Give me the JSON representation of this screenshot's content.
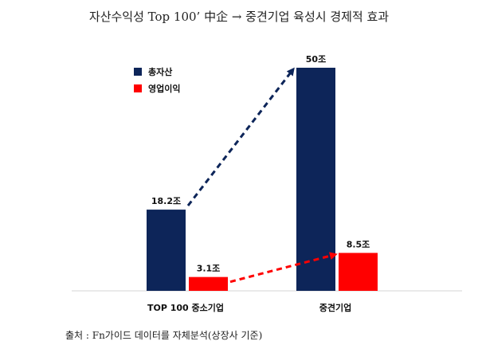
{
  "title": "자산수익성 Top 100’ 中企 → 중견기업 육성시 경제적 효과",
  "source": "출처 : Fn가이드 데이터를 자체분석(상장사 기준)",
  "chart_data": {
    "type": "bar",
    "categories": [
      "TOP 100 중소기업",
      "중견기업"
    ],
    "series": [
      {
        "name": "총자산",
        "values": [
          18.2,
          50
        ],
        "labels": [
          "18.2조",
          "50조"
        ],
        "color": "#0d2559"
      },
      {
        "name": "영업이익",
        "values": [
          3.1,
          8.5
        ],
        "labels": [
          "3.1조",
          "8.5조"
        ],
        "color": "#ff0000"
      }
    ],
    "legend_position": "top-left",
    "trend_arrows": true,
    "ylim": [
      0,
      50
    ]
  }
}
